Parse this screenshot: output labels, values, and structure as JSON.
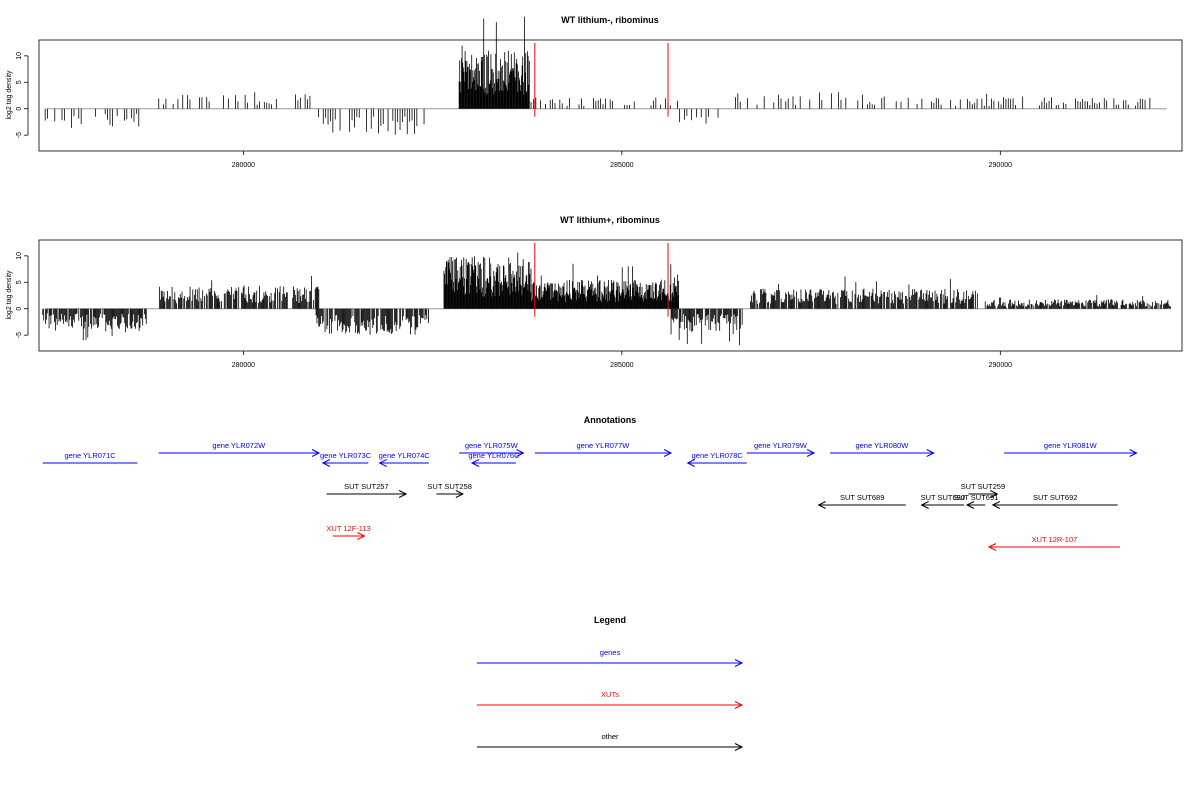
{
  "colors": {
    "genes": "#0000ff",
    "xuts": "#ff0000",
    "other": "#000000",
    "marker": "#ff0000",
    "baseline": "#999999",
    "bars": "#000000"
  },
  "chart_data": [
    {
      "type": "bar",
      "title": "WT lithium-, ribominus",
      "ylabel": "log2 tag density",
      "xlim": [
        277300,
        292400
      ],
      "ylim": [
        -8,
        13
      ],
      "xticks": [
        280000,
        285000,
        290000
      ],
      "yticks": [
        10,
        5,
        0,
        -5
      ],
      "markers": [
        283850,
        285610
      ],
      "regions": [
        {
          "from": 277350,
          "to": 278620,
          "amplitude": -3.5
        },
        {
          "from": 278850,
          "to": 280880,
          "amplitude": 2.5
        },
        {
          "from": 280960,
          "to": 282450,
          "amplitude": -4.5
        },
        {
          "from": 282850,
          "to": 283780,
          "amplitude": 10
        },
        {
          "from": 283800,
          "to": 285800,
          "amplitude": 2
        },
        {
          "from": 285700,
          "to": 286300,
          "amplitude": -3
        },
        {
          "from": 286500,
          "to": 288850,
          "amplitude": 2.8
        },
        {
          "from": 288900,
          "to": 292000,
          "amplitude": 2
        }
      ]
    },
    {
      "type": "bar",
      "title": "WT lithium+, ribominus",
      "ylabel": "log2 tag density",
      "xlim": [
        277300,
        292400
      ],
      "ylim": [
        -8,
        13
      ],
      "xticks": [
        280000,
        285000,
        290000
      ],
      "yticks": [
        10,
        5,
        0,
        -5
      ],
      "markers": [
        283850,
        285610
      ],
      "regions": [
        {
          "from": 277350,
          "to": 278720,
          "amplitude": -3.5
        },
        {
          "from": 278880,
          "to": 281000,
          "amplitude": 4
        },
        {
          "from": 280960,
          "to": 282450,
          "amplitude": -4.5
        },
        {
          "from": 282650,
          "to": 283800,
          "amplitude": 9
        },
        {
          "from": 283800,
          "to": 285750,
          "amplitude": 5
        },
        {
          "from": 285650,
          "to": 286600,
          "amplitude": -4
        },
        {
          "from": 286700,
          "to": 289700,
          "amplitude": 3.5
        },
        {
          "from": 289800,
          "to": 292250,
          "amplitude": 1.6
        }
      ]
    }
  ],
  "annotations": {
    "title": "Annotations",
    "xlim": [
      277300,
      292400
    ],
    "features": [
      {
        "label": "gene YLR071C",
        "start": 277350,
        "end": 278600,
        "strand": "-",
        "row": 0,
        "type": "gene"
      },
      {
        "label": "gene YLR072W",
        "start": 278880,
        "end": 281000,
        "strand": "+",
        "row": 0,
        "type": "gene"
      },
      {
        "label": "gene YLR073C",
        "start": 281050,
        "end": 281650,
        "strand": "-",
        "row": 0,
        "type": "gene"
      },
      {
        "label": "gene YLR074C",
        "start": 281800,
        "end": 282450,
        "strand": "-",
        "row": 0,
        "type": "gene"
      },
      {
        "label": "gene YLR075W",
        "start": 282850,
        "end": 283700,
        "strand": "+",
        "row": 0,
        "type": "gene"
      },
      {
        "label": "gene YLR076C",
        "start": 283020,
        "end": 283600,
        "strand": "-",
        "row": 0,
        "type": "gene"
      },
      {
        "label": "gene YLR077W",
        "start": 283850,
        "end": 285650,
        "strand": "+",
        "row": 0,
        "type": "gene"
      },
      {
        "label": "gene YLR078C",
        "start": 285870,
        "end": 286650,
        "strand": "-",
        "row": 0,
        "type": "gene"
      },
      {
        "label": "gene YLR079W",
        "start": 286650,
        "end": 287540,
        "strand": "+",
        "row": 0,
        "type": "gene"
      },
      {
        "label": "gene YLR080W",
        "start": 287750,
        "end": 289120,
        "strand": "+",
        "row": 0,
        "type": "gene"
      },
      {
        "label": "gene YLR081W",
        "start": 290050,
        "end": 291800,
        "strand": "+",
        "row": 0,
        "type": "gene"
      },
      {
        "label": "SUT SUT257",
        "start": 281100,
        "end": 282150,
        "strand": "+",
        "row": 1,
        "type": "other"
      },
      {
        "label": "SUT SUT258",
        "start": 282550,
        "end": 282900,
        "strand": "+",
        "row": 1,
        "type": "other"
      },
      {
        "label": "SUT SUT259",
        "start": 289580,
        "end": 289960,
        "strand": "+",
        "row": 1,
        "type": "other"
      },
      {
        "label": "SUT SUT689",
        "start": 287600,
        "end": 288750,
        "strand": "-",
        "row": 2,
        "type": "other"
      },
      {
        "label": "SUT SUT690",
        "start": 288960,
        "end": 289520,
        "strand": "-",
        "row": 2,
        "type": "other"
      },
      {
        "label": "SUT SUT691",
        "start": 289560,
        "end": 289800,
        "strand": "-",
        "row": 2,
        "type": "other"
      },
      {
        "label": "SUT SUT692",
        "start": 289900,
        "end": 291550,
        "strand": "-",
        "row": 2,
        "type": "other"
      },
      {
        "label": "XUT 12F-113",
        "start": 281180,
        "end": 281600,
        "strand": "+",
        "row": 3,
        "type": "xut"
      },
      {
        "label": "XUT 12R-107",
        "start": 289850,
        "end": 291580,
        "strand": "-",
        "row": 4,
        "type": "xut"
      }
    ]
  },
  "legend": {
    "title": "Legend",
    "items": [
      {
        "label": "genes",
        "type": "gene"
      },
      {
        "label": "XUTs",
        "type": "xut"
      },
      {
        "label": "other",
        "type": "other"
      }
    ]
  }
}
